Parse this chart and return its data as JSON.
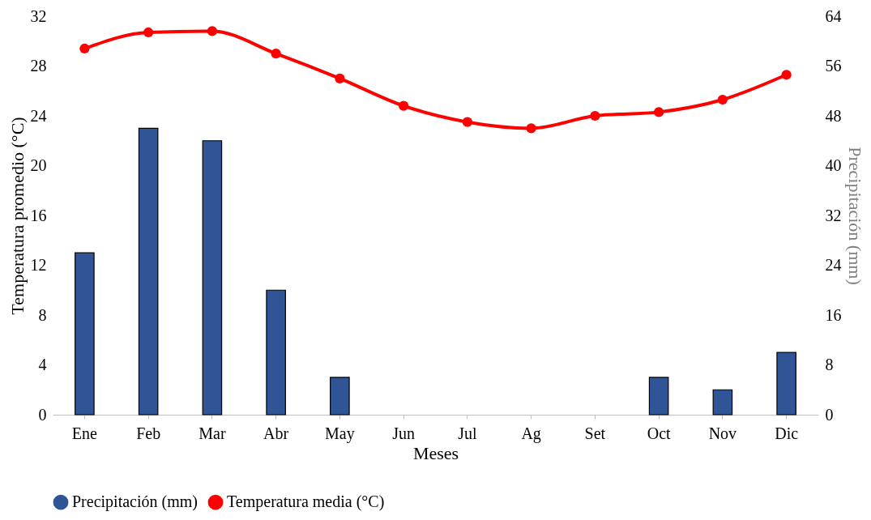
{
  "chart_data": {
    "type": "bar",
    "xlabel": "Meses",
    "ylabel": "Temperatura promedio (°C)",
    "y2label": "Precipitación (mm)",
    "categories": [
      "Ene",
      "Feb",
      "Mar",
      "Abr",
      "May",
      "Jun",
      "Jul",
      "Ag",
      "Set",
      "Oct",
      "Nov",
      "Dic"
    ],
    "series": [
      {
        "name": "Precipitación (mm)",
        "axis": "y2",
        "color": "#2f5597",
        "values": [
          26,
          46,
          44,
          20,
          6,
          0,
          0,
          0,
          0,
          6,
          4,
          10
        ]
      },
      {
        "name": "Temperatura media (°C)",
        "type": "line",
        "color": "#ff0000",
        "marker": "circle",
        "line_style": "solid",
        "values": [
          29.4,
          30.7,
          30.8,
          29.0,
          27.0,
          24.8,
          23.5,
          23.0,
          24.0,
          24.3,
          25.3,
          27.3
        ]
      }
    ],
    "ylim": [
      0,
      32
    ],
    "yticks": [
      0,
      4,
      8,
      12,
      16,
      20,
      24,
      28,
      32
    ],
    "y2lim": [
      0,
      64
    ],
    "y2ticks": [
      0,
      8,
      16,
      24,
      32,
      40,
      48,
      56,
      64
    ],
    "legend": "bottom"
  }
}
